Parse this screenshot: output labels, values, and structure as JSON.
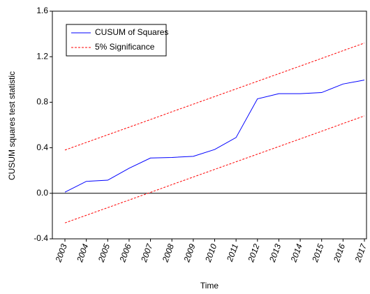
{
  "chart_data": {
    "type": "line",
    "ylabel": "CUSUM squares test statistic",
    "xlabel": "Time",
    "categories": [
      "2003",
      "2004",
      "2005",
      "2006",
      "2007",
      "2008",
      "2009",
      "2010",
      "2011",
      "2012",
      "2013",
      "2014",
      "2015",
      "2016",
      "2017"
    ],
    "series": [
      {
        "name": "CUSUM of Squares",
        "color": "#0000ff",
        "values": [
          0.01,
          0.105,
          0.115,
          0.22,
          0.31,
          0.315,
          0.325,
          0.385,
          0.49,
          0.83,
          0.875,
          0.875,
          0.885,
          0.96,
          0.995
        ]
      }
    ],
    "bands": {
      "name": "5% Significance",
      "color": "#ff0000",
      "upper": [
        0.38,
        0.447,
        0.514,
        0.581,
        0.648,
        0.716,
        0.783,
        0.85,
        0.917,
        0.984,
        1.051,
        1.118,
        1.185,
        1.253,
        1.32
      ],
      "lower": [
        -0.26,
        -0.193,
        -0.126,
        -0.059,
        0.008,
        0.076,
        0.143,
        0.21,
        0.277,
        0.344,
        0.411,
        0.478,
        0.545,
        0.613,
        0.68
      ]
    },
    "ylim": [
      -0.4,
      1.6
    ],
    "yticks": [
      {
        "value": -0.4,
        "label": "-0.4"
      },
      {
        "value": 0,
        "label": "0.0"
      },
      {
        "value": 0.4,
        "label": "0.4"
      },
      {
        "value": 0.8,
        "label": "0.8"
      },
      {
        "value": 1.2,
        "label": "1.2"
      },
      {
        "value": 1.6,
        "label": "1.6"
      }
    ],
    "legend": "upper-left"
  }
}
